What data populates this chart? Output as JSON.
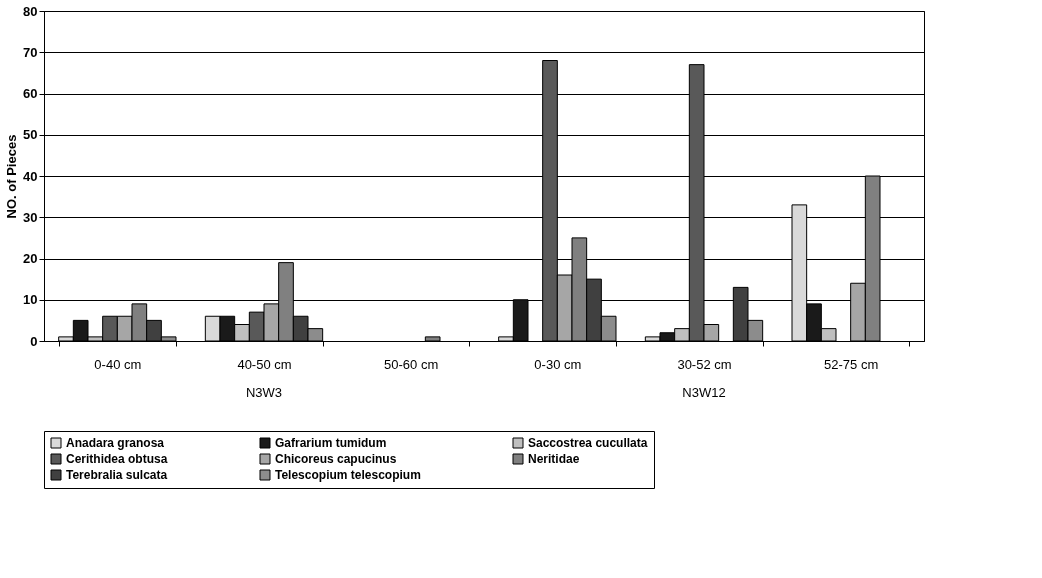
{
  "chart_data": {
    "type": "bar",
    "ylabel": "NO. of Pieces",
    "categories": [
      "0-40 cm",
      "40-50 cm",
      "50-60 cm",
      "0-30 cm",
      "30-52 cm",
      "52-75 cm"
    ],
    "series": [
      {
        "name": "Anadara granosa",
        "color": "#d9d9d9",
        "values": [
          1,
          6,
          null,
          1,
          1,
          33
        ]
      },
      {
        "name": "Gafrarium tumidum",
        "color": "#1a1a1a",
        "values": [
          5,
          6,
          null,
          10,
          2,
          9
        ]
      },
      {
        "name": "Saccostrea cucullata",
        "color": "#bfbfbf",
        "values": [
          1,
          4,
          null,
          null,
          3,
          3
        ]
      },
      {
        "name": "Cerithidea obtusa",
        "color": "#595959",
        "values": [
          6,
          7,
          null,
          68,
          67,
          null
        ]
      },
      {
        "name": "Chicoreus capucinus",
        "color": "#a6a6a6",
        "values": [
          6,
          9,
          null,
          16,
          4,
          14
        ]
      },
      {
        "name": "Neritidae",
        "color": "#808080",
        "values": [
          9,
          19,
          1,
          25,
          null,
          40
        ]
      },
      {
        "name": "Terebralia sulcata",
        "color": "#404040",
        "values": [
          5,
          6,
          null,
          15,
          13,
          null
        ]
      },
      {
        "name": "Telescopium telescopium",
        "color": "#8c8c8c",
        "values": [
          1,
          3,
          null,
          6,
          5,
          null
        ]
      }
    ],
    "ylim": [
      0,
      80
    ],
    "yticks": [
      0,
      10,
      20,
      30,
      40,
      50,
      60,
      70,
      80
    ],
    "grid": "y",
    "legend": "bottom",
    "annotations": [
      "N3W3",
      "N3W12"
    ]
  }
}
